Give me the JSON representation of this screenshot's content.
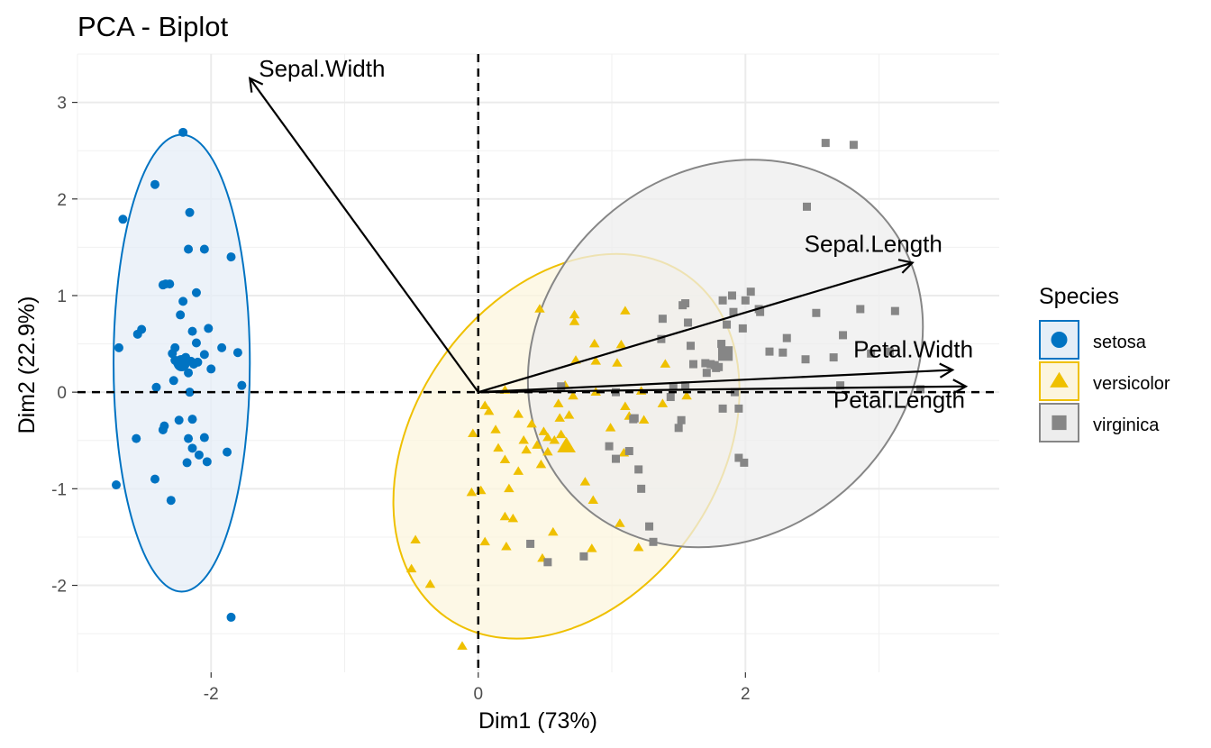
{
  "chart_data": {
    "type": "scatter",
    "title": "PCA - Biplot",
    "xlabel": "Dim1 (73%)",
    "ylabel": "Dim2 (22.9%)",
    "xlim": [
      -3.0,
      3.9
    ],
    "ylim": [
      -2.9,
      3.5
    ],
    "x_ticks": [
      -2,
      0,
      2
    ],
    "y_ticks": [
      -2,
      -1,
      0,
      1,
      2,
      3
    ],
    "grid": true,
    "legend": {
      "title": "Species",
      "position": "right"
    },
    "series": [
      {
        "name": "setosa",
        "shape": "circle",
        "color": "#0073C2",
        "points": [
          [
            -2.69,
            0.46
          ],
          [
            -2.71,
            -0.96
          ],
          [
            -2.66,
            1.79
          ],
          [
            -2.55,
            0.6
          ],
          [
            -2.56,
            -0.48
          ],
          [
            -2.52,
            0.65
          ],
          [
            -2.42,
            2.15
          ],
          [
            -2.42,
            -0.9
          ],
          [
            -2.41,
            0.05
          ],
          [
            -2.36,
            1.11
          ],
          [
            -2.34,
            1.12
          ],
          [
            -2.35,
            -0.35
          ],
          [
            -2.36,
            -0.39
          ],
          [
            -2.31,
            1.12
          ],
          [
            -2.3,
            -1.12
          ],
          [
            -2.29,
            0.4
          ],
          [
            -2.27,
            0.46
          ],
          [
            -2.25,
            0.3
          ],
          [
            -2.24,
            -0.29
          ],
          [
            -2.23,
            0.8
          ],
          [
            -2.28,
            0.12
          ],
          [
            -2.27,
            0.33
          ],
          [
            -2.21,
            2.69
          ],
          [
            -2.21,
            0.94
          ],
          [
            -2.19,
            0.36
          ],
          [
            -2.17,
            0.2
          ],
          [
            -2.16,
            1.86
          ],
          [
            -2.17,
            1.48
          ],
          [
            -2.16,
            0.0
          ],
          [
            -2.17,
            -0.48
          ],
          [
            -2.15,
            0.32
          ],
          [
            -2.14,
            -0.58
          ],
          [
            -2.18,
            -0.73
          ],
          [
            -2.13,
            0.29
          ],
          [
            -2.14,
            0.63
          ],
          [
            -2.14,
            -0.28
          ],
          [
            -2.11,
            0.51
          ],
          [
            -2.11,
            1.03
          ],
          [
            -2.1,
            0.31
          ],
          [
            -2.09,
            -0.65
          ],
          [
            -2.05,
            0.39
          ],
          [
            -2.05,
            -0.47
          ],
          [
            -2.05,
            1.48
          ],
          [
            -2.03,
            -0.72
          ],
          [
            -2.02,
            0.66
          ],
          [
            -2.0,
            0.24
          ],
          [
            -1.92,
            0.46
          ],
          [
            -1.88,
            -0.62
          ],
          [
            -1.85,
            1.4
          ],
          [
            -1.8,
            0.41
          ],
          [
            -1.77,
            0.07
          ],
          [
            -1.85,
            -2.33
          ]
        ]
      },
      {
        "name": "versicolor",
        "shape": "triangle",
        "color": "#EFC000",
        "points": [
          [
            -0.47,
            -1.53
          ],
          [
            -0.5,
            -1.83
          ],
          [
            -0.36,
            -1.99
          ],
          [
            -0.12,
            -2.63
          ],
          [
            -0.05,
            -1.04
          ],
          [
            0.02,
            -1.02
          ],
          [
            -0.04,
            -0.43
          ],
          [
            0.05,
            -0.14
          ],
          [
            0.08,
            -0.2
          ],
          [
            0.15,
            -0.58
          ],
          [
            0.21,
            -1.6
          ],
          [
            0.05,
            -1.55
          ],
          [
            0.2,
            -1.29
          ],
          [
            0.13,
            -0.39
          ],
          [
            0.2,
            -0.7
          ],
          [
            0.23,
            -1.0
          ],
          [
            0.3,
            -0.82
          ],
          [
            0.26,
            -1.31
          ],
          [
            0.2,
            0.02
          ],
          [
            0.3,
            -0.23
          ],
          [
            0.34,
            -0.5
          ],
          [
            0.36,
            -0.6
          ],
          [
            0.4,
            -0.33
          ],
          [
            0.46,
            0.86
          ],
          [
            0.44,
            -0.55
          ],
          [
            0.47,
            -0.75
          ],
          [
            0.48,
            -1.72
          ],
          [
            0.49,
            -0.41
          ],
          [
            0.52,
            -0.62
          ],
          [
            0.52,
            -0.47
          ],
          [
            0.57,
            -0.5
          ],
          [
            0.6,
            -0.12
          ],
          [
            0.61,
            -0.27
          ],
          [
            0.62,
            -0.44
          ],
          [
            0.56,
            -1.45
          ],
          [
            0.65,
            0.07
          ],
          [
            0.68,
            -0.24
          ],
          [
            0.71,
            -0.04
          ],
          [
            0.72,
            0.73
          ],
          [
            0.72,
            0.8
          ],
          [
            0.73,
            0.33
          ],
          [
            0.8,
            -0.93
          ],
          [
            0.85,
            -1.62
          ],
          [
            0.86,
            -1.12
          ],
          [
            0.87,
            0.5
          ],
          [
            0.88,
            0.32
          ],
          [
            0.88,
            0.0
          ],
          [
            0.99,
            -0.37
          ],
          [
            1.04,
            0.3
          ],
          [
            1.06,
            -1.36
          ],
          [
            1.07,
            0.49
          ],
          [
            1.09,
            -0.63
          ],
          [
            1.1,
            -0.15
          ],
          [
            1.1,
            0.84
          ],
          [
            1.13,
            -0.25
          ],
          [
            1.22,
            0.01
          ],
          [
            1.24,
            -0.29
          ],
          [
            1.2,
            -1.61
          ],
          [
            1.4,
            0.29
          ],
          [
            1.38,
            -0.12
          ],
          [
            1.56,
            -0.04
          ]
        ]
      },
      {
        "name": "virginica",
        "shape": "square",
        "color": "#868686",
        "points": [
          [
            0.39,
            -1.57
          ],
          [
            0.52,
            -1.76
          ],
          [
            0.62,
            0.06
          ],
          [
            0.79,
            -1.7
          ],
          [
            0.98,
            -0.56
          ],
          [
            1.03,
            0.0
          ],
          [
            1.03,
            -0.69
          ],
          [
            1.2,
            -0.8
          ],
          [
            1.16,
            -0.28
          ],
          [
            1.22,
            -1.0
          ],
          [
            1.17,
            -0.27
          ],
          [
            1.13,
            -0.61
          ],
          [
            1.28,
            -1.39
          ],
          [
            1.31,
            -1.55
          ],
          [
            1.37,
            0.55
          ],
          [
            1.38,
            0.76
          ],
          [
            1.44,
            -0.05
          ],
          [
            1.46,
            0.06
          ],
          [
            1.5,
            -0.37
          ],
          [
            1.55,
            0.07
          ],
          [
            1.59,
            0.48
          ],
          [
            1.55,
            0.92
          ],
          [
            1.61,
            0.29
          ],
          [
            1.53,
            0.9
          ],
          [
            1.57,
            0.72
          ],
          [
            1.52,
            -0.29
          ],
          [
            1.71,
            0.2
          ],
          [
            1.78,
            0.25
          ],
          [
            1.7,
            0.3
          ],
          [
            1.74,
            0.29
          ],
          [
            1.77,
            0.28
          ],
          [
            1.8,
            0.26
          ],
          [
            1.82,
            0.5
          ],
          [
            1.86,
            0.7
          ],
          [
            1.83,
            0.95
          ],
          [
            1.9,
            1.0
          ],
          [
            1.91,
            0.83
          ],
          [
            1.92,
            0.0
          ],
          [
            1.83,
            -0.17
          ],
          [
            1.95,
            -0.17
          ],
          [
            1.98,
            0.66
          ],
          [
            1.99,
            -0.73
          ],
          [
            1.95,
            -0.68
          ],
          [
            2.04,
            1.04
          ],
          [
            2.0,
            0.95
          ],
          [
            2.1,
            0.86
          ],
          [
            2.11,
            0.83
          ],
          [
            2.28,
            0.41
          ],
          [
            2.18,
            0.42
          ],
          [
            2.31,
            0.56
          ],
          [
            2.45,
            0.34
          ],
          [
            2.66,
            0.36
          ],
          [
            2.71,
            0.07
          ],
          [
            2.53,
            0.82
          ],
          [
            2.86,
            0.86
          ],
          [
            2.94,
            0.4
          ],
          [
            2.73,
            0.59
          ],
          [
            3.12,
            0.84
          ],
          [
            2.46,
            1.92
          ],
          [
            2.6,
            2.58
          ],
          [
            2.81,
            2.56
          ],
          [
            3.08,
            0.42
          ],
          [
            3.31,
            0.03
          ]
        ]
      }
    ],
    "ellipses": [
      {
        "series": "setosa",
        "center": [
          -2.22,
          0.3
        ],
        "width": 1.02,
        "height": 4.73,
        "angle": 0
      },
      {
        "series": "versicolor",
        "center": [
          0.66,
          -0.56
        ],
        "width": 2.28,
        "height": 4.33,
        "angle": 35
      },
      {
        "series": "virginica",
        "center": [
          1.85,
          0.4
        ],
        "width": 2.72,
        "height": 4.32,
        "angle": 49
      }
    ],
    "reference_lines": {
      "x": 0,
      "y": 0
    },
    "loadings": [
      {
        "label": "Sepal.Width",
        "x": -1.71,
        "y": 3.25
      },
      {
        "label": "Sepal.Length",
        "x": 3.25,
        "y": 1.34
      },
      {
        "label": "Petal.Width",
        "x": 3.55,
        "y": 0.23
      },
      {
        "label": "Petal.Length",
        "x": 3.65,
        "y": 0.06
      }
    ]
  }
}
